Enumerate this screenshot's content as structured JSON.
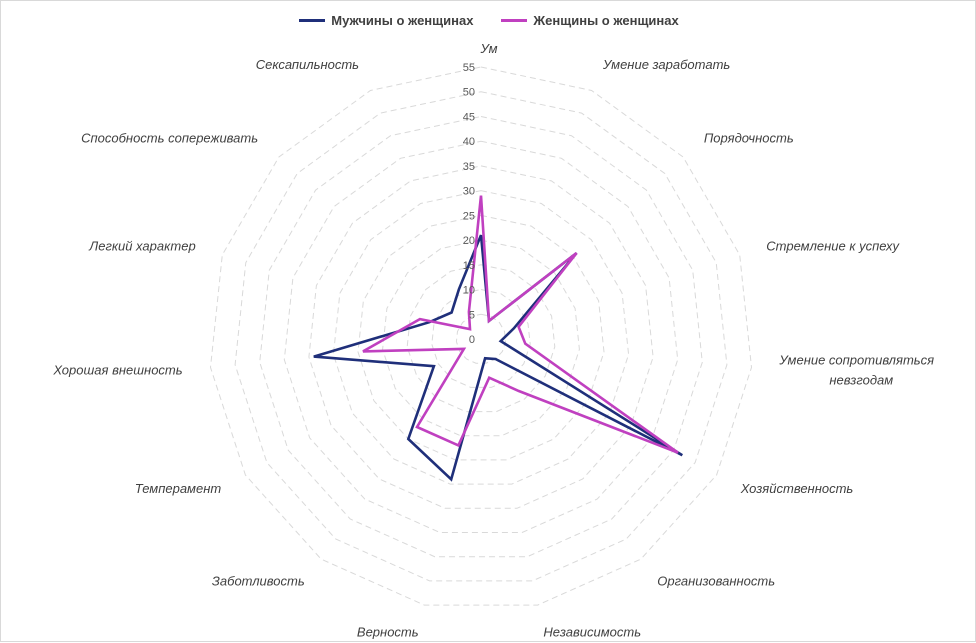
{
  "chart_data": {
    "type": "radar",
    "categories": [
      "Ум",
      "Умение заработать",
      "Порядочность",
      "Стремление к успеху",
      "Умение сопротивляться невзгодам",
      "Хозяйственность",
      "Организованность",
      "Независимость",
      "Верность",
      "Заботливость",
      "Темперамент",
      "Хорошая внешность",
      "Легкий характер",
      "Способность сопереживать",
      "Сексапильность"
    ],
    "rlim": [
      0,
      55
    ],
    "ticks": [
      0,
      5,
      10,
      15,
      20,
      25,
      30,
      35,
      40,
      45,
      50,
      55
    ],
    "grid": true,
    "legend_position": "top",
    "series": [
      {
        "name": "Мужчины о женщинах",
        "color": "#1f2f7a",
        "values": [
          21,
          4,
          26,
          7,
          4,
          47,
          5,
          4,
          29,
          25,
          11,
          34,
          11,
          8,
          11
        ]
      },
      {
        "name": "Женщины о женщинах",
        "color": "#c040c0",
        "values": [
          29,
          4,
          26,
          8,
          9,
          46,
          13,
          8,
          22,
          22,
          4,
          24,
          13,
          3,
          6
        ]
      }
    ]
  }
}
